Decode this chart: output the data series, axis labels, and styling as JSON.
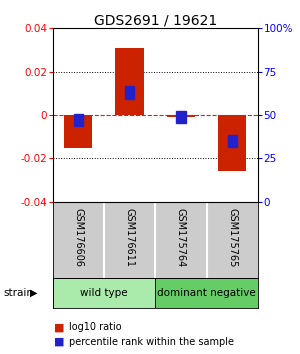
{
  "title": "GDS2691 / 19621",
  "samples": [
    "GSM176606",
    "GSM176611",
    "GSM175764",
    "GSM175765"
  ],
  "log10_ratio": [
    -0.015,
    0.031,
    -0.001,
    -0.026
  ],
  "percentile_rank": [
    47,
    63,
    49,
    35
  ],
  "groups": [
    {
      "label": "wild type",
      "color": "#aaeaaa",
      "samples": [
        0,
        1
      ]
    },
    {
      "label": "dominant negative",
      "color": "#66cc66",
      "samples": [
        2,
        3
      ]
    }
  ],
  "group_attr": "strain",
  "ylim": [
    -0.04,
    0.04
  ],
  "yticks_left": [
    -0.04,
    -0.02,
    0,
    0.02,
    0.04
  ],
  "yticks_right": [
    0,
    25,
    50,
    75,
    100
  ],
  "bar_color": "#cc2200",
  "blue_color": "#2222cc",
  "dashed_color": "#cc2222",
  "bg_color": "#ffffff",
  "sample_bg": "#cccccc",
  "legend_red_label": "log10 ratio",
  "legend_blue_label": "percentile rank within the sample",
  "title_fontsize": 10,
  "tick_fontsize": 7.5,
  "label_fontsize": 7.5
}
